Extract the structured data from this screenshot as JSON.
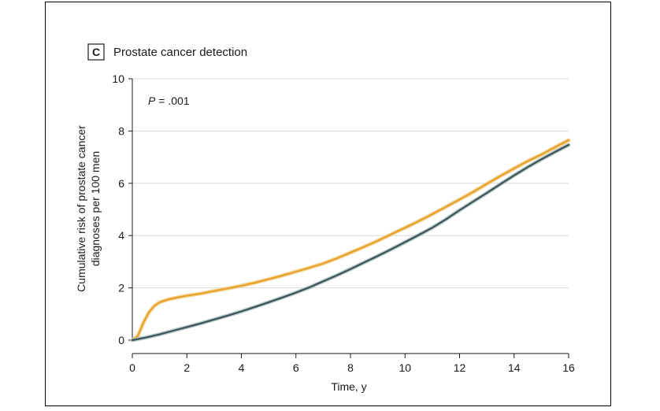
{
  "chart_data": {
    "type": "line",
    "panel_letter": "C",
    "title": "Prostate cancer detection",
    "xlabel": "Time, y",
    "ylabel_lines": [
      "Cumulative risk of prostate cancer",
      "diagnoses per 100 men"
    ],
    "xlim": [
      0,
      16
    ],
    "ylim": [
      0,
      10
    ],
    "xticks": [
      0,
      2,
      4,
      6,
      8,
      10,
      12,
      14,
      16
    ],
    "yticks": [
      0,
      2,
      4,
      6,
      8,
      10
    ],
    "grid": "horizontal",
    "annotation": {
      "p_label": "P",
      "p_value": " = .001"
    },
    "series": [
      {
        "color": "#e8a02a",
        "band_color": "#f3cf8a",
        "x": [
          0,
          0.2,
          0.4,
          0.6,
          0.8,
          1,
          1.3,
          1.6,
          2,
          2.5,
          3,
          3.5,
          4,
          4.5,
          5,
          5.5,
          6,
          6.5,
          7,
          7.5,
          8,
          8.5,
          9,
          9.5,
          10,
          10.5,
          11,
          11.5,
          12,
          12.5,
          13,
          13.5,
          14,
          14.5,
          15,
          15.5,
          16
        ],
        "y": [
          0,
          0.15,
          0.65,
          1.05,
          1.3,
          1.45,
          1.55,
          1.62,
          1.7,
          1.78,
          1.88,
          1.98,
          2.08,
          2.2,
          2.33,
          2.47,
          2.62,
          2.77,
          2.93,
          3.13,
          3.35,
          3.57,
          3.8,
          4.05,
          4.3,
          4.55,
          4.82,
          5.1,
          5.38,
          5.67,
          5.98,
          6.28,
          6.57,
          6.85,
          7.1,
          7.38,
          7.65
        ]
      },
      {
        "color": "#3d5258",
        "band_color": "#a9c3c0",
        "x": [
          0,
          0.5,
          1,
          1.5,
          2,
          2.5,
          3,
          3.5,
          4,
          4.5,
          5,
          5.5,
          6,
          6.5,
          7,
          7.5,
          8,
          8.5,
          9,
          9.5,
          10,
          10.5,
          11,
          11.5,
          12,
          12.5,
          13,
          13.5,
          14,
          14.5,
          15,
          15.5,
          16
        ],
        "y": [
          0,
          0.1,
          0.22,
          0.36,
          0.5,
          0.64,
          0.79,
          0.94,
          1.1,
          1.27,
          1.45,
          1.63,
          1.82,
          2.02,
          2.25,
          2.48,
          2.72,
          2.97,
          3.22,
          3.48,
          3.75,
          4.02,
          4.3,
          4.62,
          4.97,
          5.3,
          5.63,
          5.97,
          6.3,
          6.62,
          6.92,
          7.2,
          7.47
        ]
      }
    ]
  }
}
